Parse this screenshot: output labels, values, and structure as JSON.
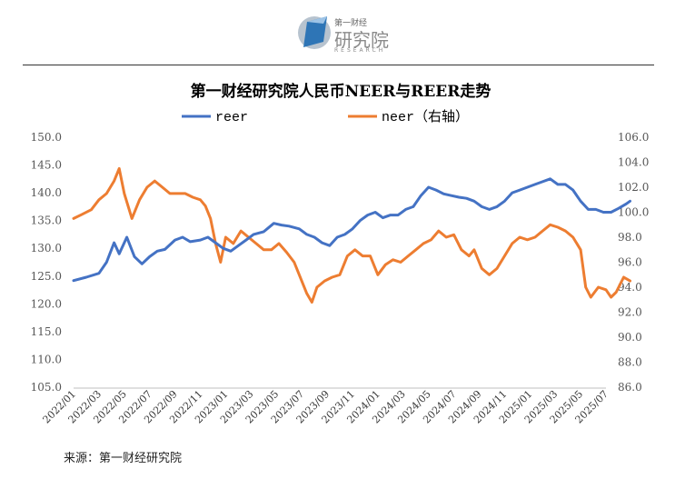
{
  "header": {
    "brand_small": "第一财经",
    "brand_big": "研究院",
    "brand_en": "RESEARCH"
  },
  "footer": {
    "source": "来源：第一财经研究院"
  },
  "colors": {
    "reer": "#4472c4",
    "neer": "#ed7d31",
    "axis_text": "#555555"
  },
  "chart_data": {
    "type": "line",
    "title": "第一财经研究院人民币NEER与REER走势",
    "legend": [
      "reer",
      "neer（右轴）"
    ],
    "legend_position": "top",
    "grid": false,
    "x": [
      "2022/01",
      "2022/03",
      "2022/05",
      "2022/07",
      "2022/09",
      "2022/11",
      "2023/01",
      "2023/03",
      "2023/05",
      "2023/07",
      "2023/09",
      "2023/11",
      "2024/01",
      "2024/03",
      "2024/05",
      "2024/07",
      "2024/09",
      "2024/11",
      "2025/01",
      "2025/03",
      "2025/05",
      "2025/07"
    ],
    "y_left": {
      "ylim": [
        105,
        150
      ],
      "ticks": [
        "105.0",
        "110.0",
        "115.0",
        "120.0",
        "125.0",
        "130.0",
        "135.0",
        "140.0",
        "145.0",
        "150.0"
      ]
    },
    "y_right": {
      "ylim": [
        86,
        106
      ],
      "ticks": [
        "86.0",
        "88.0",
        "90.0",
        "92.0",
        "94.0",
        "96.0",
        "98.0",
        "100.0",
        "102.0",
        "104.0",
        "106.0"
      ]
    },
    "series": [
      {
        "name": "reer",
        "axis": "left",
        "values": [
          [
            0,
            124.2
          ],
          [
            0.5,
            124.8
          ],
          [
            1,
            125.5
          ],
          [
            1.3,
            127.5
          ],
          [
            1.6,
            131.0
          ],
          [
            1.8,
            129.0
          ],
          [
            2.1,
            132.0
          ],
          [
            2.4,
            128.5
          ],
          [
            2.7,
            127.2
          ],
          [
            3.0,
            128.5
          ],
          [
            3.3,
            129.5
          ],
          [
            3.6,
            129.8
          ],
          [
            4.0,
            131.5
          ],
          [
            4.3,
            132.0
          ],
          [
            4.6,
            131.2
          ],
          [
            5.0,
            131.5
          ],
          [
            5.3,
            132.0
          ],
          [
            5.6,
            131.0
          ],
          [
            5.9,
            130.0
          ],
          [
            6.2,
            129.5
          ],
          [
            6.5,
            130.5
          ],
          [
            6.8,
            131.5
          ],
          [
            7.1,
            132.5
          ],
          [
            7.5,
            133.0
          ],
          [
            7.9,
            134.5
          ],
          [
            8.2,
            134.2
          ],
          [
            8.5,
            134.0
          ],
          [
            8.9,
            133.5
          ],
          [
            9.2,
            132.5
          ],
          [
            9.5,
            132.0
          ],
          [
            9.8,
            131.0
          ],
          [
            10.1,
            130.5
          ],
          [
            10.4,
            132.0
          ],
          [
            10.7,
            132.5
          ],
          [
            11.0,
            133.5
          ],
          [
            11.3,
            135.0
          ],
          [
            11.6,
            136.0
          ],
          [
            11.9,
            136.5
          ],
          [
            12.2,
            135.5
          ],
          [
            12.5,
            136.0
          ],
          [
            12.8,
            136.0
          ],
          [
            13.1,
            137.0
          ],
          [
            13.4,
            137.5
          ],
          [
            13.7,
            139.5
          ],
          [
            14.0,
            141.0
          ],
          [
            14.3,
            140.5
          ],
          [
            14.6,
            139.8
          ],
          [
            14.9,
            139.5
          ],
          [
            15.2,
            139.2
          ],
          [
            15.5,
            139.0
          ],
          [
            15.8,
            138.5
          ],
          [
            16.1,
            137.5
          ],
          [
            16.4,
            137.0
          ],
          [
            16.7,
            137.5
          ],
          [
            17.0,
            138.5
          ],
          [
            17.3,
            140.0
          ],
          [
            17.6,
            140.5
          ],
          [
            17.9,
            141.0
          ],
          [
            18.2,
            141.5
          ],
          [
            18.5,
            142.0
          ],
          [
            18.8,
            142.5
          ],
          [
            19.1,
            141.5
          ],
          [
            19.4,
            141.5
          ],
          [
            19.7,
            140.5
          ],
          [
            20.0,
            138.5
          ],
          [
            20.3,
            137.0
          ],
          [
            20.6,
            137.0
          ],
          [
            20.9,
            136.5
          ],
          [
            21.2,
            136.5
          ],
          [
            21.5,
            137.2
          ],
          [
            21.8,
            138.0
          ],
          [
            21.95,
            138.5
          ]
        ]
      },
      {
        "name": "neer（右轴）",
        "axis": "right",
        "values": [
          [
            0,
            99.5
          ],
          [
            0.3,
            99.8
          ],
          [
            0.7,
            100.2
          ],
          [
            1.0,
            101.0
          ],
          [
            1.3,
            101.5
          ],
          [
            1.6,
            102.5
          ],
          [
            1.8,
            103.5
          ],
          [
            2.0,
            101.5
          ],
          [
            2.3,
            99.5
          ],
          [
            2.6,
            101.0
          ],
          [
            2.9,
            102.0
          ],
          [
            3.2,
            102.5
          ],
          [
            3.5,
            102.0
          ],
          [
            3.8,
            101.5
          ],
          [
            4.1,
            101.5
          ],
          [
            4.4,
            101.5
          ],
          [
            4.7,
            101.2
          ],
          [
            5.0,
            101.0
          ],
          [
            5.2,
            100.5
          ],
          [
            5.4,
            99.5
          ],
          [
            5.6,
            97.5
          ],
          [
            5.8,
            96.0
          ],
          [
            6.0,
            98.0
          ],
          [
            6.3,
            97.5
          ],
          [
            6.6,
            98.5
          ],
          [
            6.9,
            98.0
          ],
          [
            7.2,
            97.5
          ],
          [
            7.5,
            97.0
          ],
          [
            7.8,
            97.0
          ],
          [
            8.1,
            97.5
          ],
          [
            8.4,
            96.8
          ],
          [
            8.7,
            96.0
          ],
          [
            9.0,
            94.5
          ],
          [
            9.2,
            93.5
          ],
          [
            9.4,
            92.8
          ],
          [
            9.6,
            94.0
          ],
          [
            9.9,
            94.5
          ],
          [
            10.2,
            94.8
          ],
          [
            10.5,
            95.0
          ],
          [
            10.8,
            96.5
          ],
          [
            11.1,
            97.0
          ],
          [
            11.4,
            96.5
          ],
          [
            11.7,
            96.5
          ],
          [
            12.0,
            95.0
          ],
          [
            12.3,
            95.8
          ],
          [
            12.6,
            96.2
          ],
          [
            12.9,
            96.0
          ],
          [
            13.2,
            96.5
          ],
          [
            13.5,
            97.0
          ],
          [
            13.8,
            97.5
          ],
          [
            14.1,
            97.8
          ],
          [
            14.4,
            98.5
          ],
          [
            14.7,
            98.0
          ],
          [
            15.0,
            98.2
          ],
          [
            15.3,
            97.0
          ],
          [
            15.6,
            96.5
          ],
          [
            15.8,
            97.0
          ],
          [
            16.1,
            95.5
          ],
          [
            16.4,
            95.0
          ],
          [
            16.7,
            95.5
          ],
          [
            17.0,
            96.5
          ],
          [
            17.3,
            97.5
          ],
          [
            17.6,
            98.0
          ],
          [
            17.9,
            97.8
          ],
          [
            18.2,
            98.0
          ],
          [
            18.5,
            98.5
          ],
          [
            18.8,
            99.0
          ],
          [
            19.1,
            98.8
          ],
          [
            19.4,
            98.5
          ],
          [
            19.7,
            98.0
          ],
          [
            20.0,
            97.0
          ],
          [
            20.2,
            94.0
          ],
          [
            20.4,
            93.2
          ],
          [
            20.7,
            94.0
          ],
          [
            21.0,
            93.8
          ],
          [
            21.2,
            93.2
          ],
          [
            21.4,
            93.6
          ],
          [
            21.7,
            94.8
          ],
          [
            21.95,
            94.5
          ]
        ]
      }
    ]
  }
}
